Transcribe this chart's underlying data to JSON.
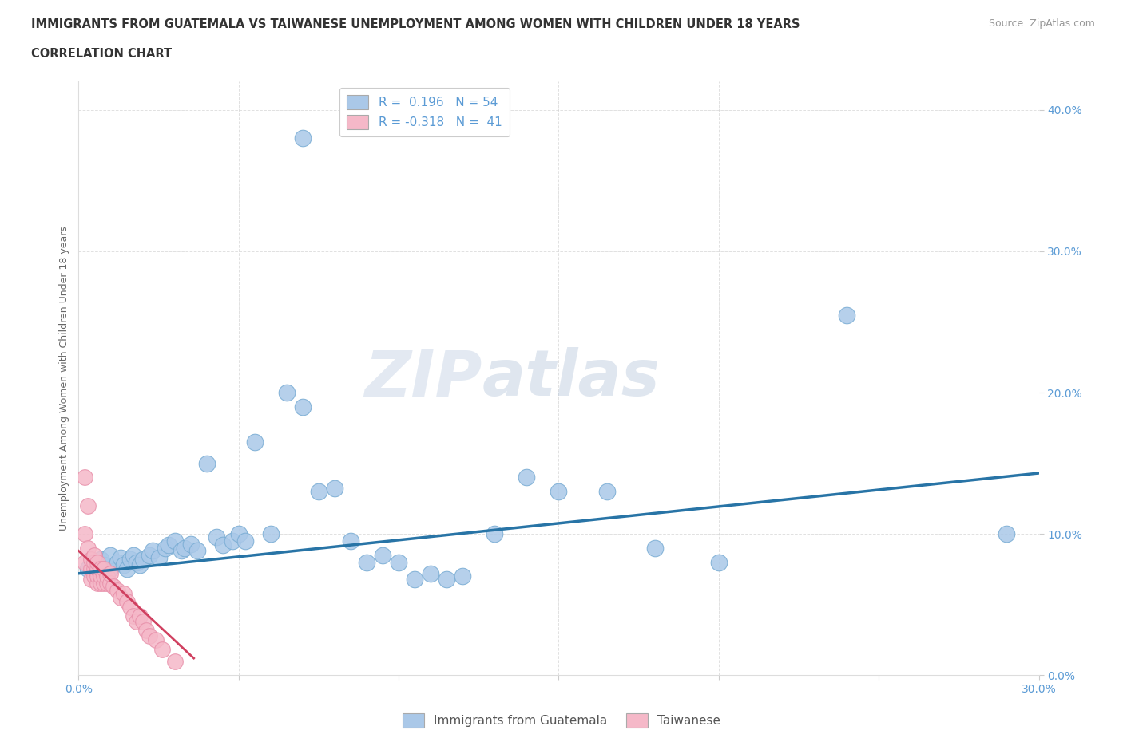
{
  "title_line1": "IMMIGRANTS FROM GUATEMALA VS TAIWANESE UNEMPLOYMENT AMONG WOMEN WITH CHILDREN UNDER 18 YEARS",
  "title_line2": "CORRELATION CHART",
  "source_text": "Source: ZipAtlas.com",
  "ylabel": "Unemployment Among Women with Children Under 18 years",
  "xlim": [
    0.0,
    0.3
  ],
  "ylim": [
    0.0,
    0.42
  ],
  "x_ticks": [
    0.0,
    0.05,
    0.1,
    0.15,
    0.2,
    0.25,
    0.3
  ],
  "x_tick_labels": [
    "0.0%",
    "",
    "",
    "",
    "",
    "",
    "30.0%"
  ],
  "y_ticks": [
    0.0,
    0.1,
    0.2,
    0.3,
    0.4
  ],
  "y_tick_labels": [
    "0.0%",
    "10.0%",
    "20.0%",
    "30.0%",
    "40.0%"
  ],
  "blue_R": 0.196,
  "blue_N": 54,
  "pink_R": -0.318,
  "pink_N": 41,
  "blue_color": "#aac8e8",
  "blue_edge_color": "#7aadd4",
  "blue_line_color": "#2874a6",
  "pink_color": "#f5b8c8",
  "pink_edge_color": "#e890aa",
  "pink_line_color": "#d04060",
  "legend_label_blue": "Immigrants from Guatemala",
  "legend_label_pink": "Taiwanese",
  "watermark": "ZIPatlas",
  "blue_scatter_x": [
    0.07,
    0.003,
    0.005,
    0.007,
    0.008,
    0.01,
    0.01,
    0.012,
    0.013,
    0.014,
    0.015,
    0.016,
    0.017,
    0.018,
    0.019,
    0.02,
    0.022,
    0.023,
    0.025,
    0.027,
    0.028,
    0.03,
    0.032,
    0.033,
    0.035,
    0.037,
    0.04,
    0.043,
    0.045,
    0.048,
    0.05,
    0.052,
    0.055,
    0.06,
    0.065,
    0.07,
    0.075,
    0.08,
    0.085,
    0.09,
    0.095,
    0.1,
    0.105,
    0.11,
    0.115,
    0.12,
    0.13,
    0.14,
    0.15,
    0.165,
    0.18,
    0.2,
    0.24,
    0.29
  ],
  "blue_scatter_y": [
    0.38,
    0.075,
    0.08,
    0.082,
    0.078,
    0.075,
    0.085,
    0.08,
    0.083,
    0.078,
    0.075,
    0.082,
    0.085,
    0.08,
    0.078,
    0.082,
    0.085,
    0.088,
    0.083,
    0.09,
    0.092,
    0.095,
    0.088,
    0.09,
    0.093,
    0.088,
    0.15,
    0.098,
    0.092,
    0.095,
    0.1,
    0.095,
    0.165,
    0.1,
    0.2,
    0.19,
    0.13,
    0.132,
    0.095,
    0.08,
    0.085,
    0.08,
    0.068,
    0.072,
    0.068,
    0.07,
    0.1,
    0.14,
    0.13,
    0.13,
    0.09,
    0.08,
    0.255,
    0.1
  ],
  "pink_scatter_x": [
    0.002,
    0.002,
    0.002,
    0.003,
    0.003,
    0.004,
    0.004,
    0.004,
    0.005,
    0.005,
    0.005,
    0.005,
    0.006,
    0.006,
    0.006,
    0.006,
    0.007,
    0.007,
    0.007,
    0.008,
    0.008,
    0.008,
    0.009,
    0.009,
    0.01,
    0.01,
    0.011,
    0.012,
    0.013,
    0.014,
    0.015,
    0.016,
    0.017,
    0.018,
    0.019,
    0.02,
    0.021,
    0.022,
    0.024,
    0.026,
    0.03
  ],
  "pink_scatter_y": [
    0.14,
    0.08,
    0.1,
    0.09,
    0.12,
    0.068,
    0.075,
    0.082,
    0.07,
    0.075,
    0.08,
    0.085,
    0.065,
    0.07,
    0.075,
    0.08,
    0.065,
    0.07,
    0.075,
    0.065,
    0.07,
    0.075,
    0.065,
    0.07,
    0.065,
    0.072,
    0.063,
    0.06,
    0.055,
    0.058,
    0.052,
    0.048,
    0.042,
    0.038,
    0.042,
    0.038,
    0.032,
    0.028,
    0.025,
    0.018,
    0.01
  ],
  "background_color": "#ffffff",
  "grid_color": "#cccccc",
  "title_color": "#333333",
  "axis_label_color": "#666666",
  "tick_label_color": "#5b9bd5"
}
